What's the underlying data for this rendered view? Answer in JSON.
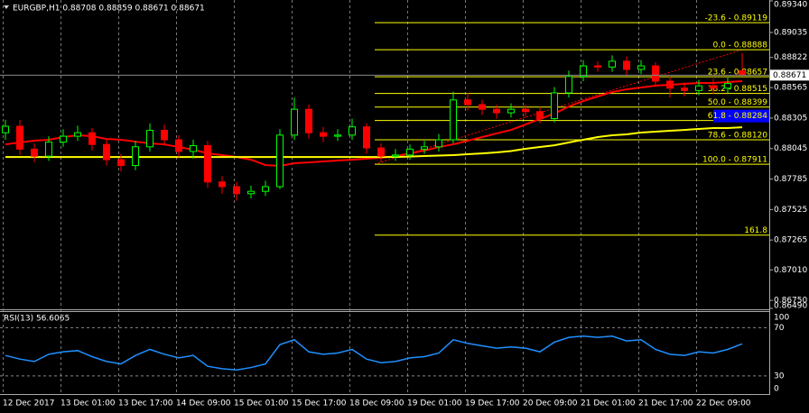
{
  "chart_data": {
    "type": "candlestick",
    "title": "EURGBP,H1  0.88708 0.88859 0.88671 0.88671",
    "categories": [
      "12 Dec 2017",
      null,
      null,
      null,
      "13 Dec 01:00",
      null,
      null,
      null,
      "13 Dec 17:00",
      null,
      null,
      null,
      "14 Dec 09:00",
      null,
      null,
      null,
      "15 Dec 01:00",
      null,
      null,
      null,
      "15 Dec 17:00",
      null,
      null,
      null,
      "18 Dec 09:00",
      null,
      null,
      null,
      "19 Dec 01:00",
      null,
      null,
      null,
      "19 Dec 17:00",
      null,
      null,
      null,
      "20 Dec 09:00",
      null,
      null,
      null,
      "21 Dec 01:00",
      null,
      null,
      null,
      "21 Dec 17:00",
      null,
      null,
      null,
      "22 Dec 09:00",
      null,
      null,
      null
    ],
    "ohlc": {
      "up_color": "#00ff00",
      "down_color": "#ff0000",
      "open": [
        0.8818,
        0.88235,
        0.8804,
        0.8798,
        0.881,
        0.8815,
        0.8818,
        0.8808,
        0.8795,
        0.879,
        0.8806,
        0.882,
        0.8812,
        0.8802,
        0.8807,
        0.8776,
        0.8772,
        0.8766,
        0.8768,
        0.8772,
        0.8816,
        0.8838,
        0.8818,
        0.8815,
        0.8816,
        0.8823,
        0.8805,
        0.8798,
        0.8799,
        0.8804,
        0.8806,
        0.8812,
        0.8846,
        0.8842,
        0.8838,
        0.8835,
        0.8838,
        0.8836,
        0.883,
        0.8852,
        0.8866,
        0.8875,
        0.8874,
        0.8879,
        0.8872,
        0.8875,
        0.8862,
        0.8856,
        0.8854,
        0.8858,
        0.8856,
        0.88708
      ],
      "high": [
        0.8829,
        0.8829,
        0.8809,
        0.8815,
        0.8821,
        0.8824,
        0.8822,
        0.8812,
        0.88,
        0.8811,
        0.8826,
        0.8825,
        0.8816,
        0.8812,
        0.8811,
        0.8781,
        0.8776,
        0.8773,
        0.8777,
        0.8821,
        0.8848,
        0.8842,
        0.8823,
        0.8821,
        0.883,
        0.8826,
        0.8809,
        0.8804,
        0.8808,
        0.8811,
        0.8817,
        0.8853,
        0.8852,
        0.8846,
        0.8842,
        0.8843,
        0.8842,
        0.884,
        0.8857,
        0.8871,
        0.888,
        0.8879,
        0.8884,
        0.8883,
        0.888,
        0.8878,
        0.8866,
        0.8861,
        0.8863,
        0.8864,
        0.8865,
        0.88859
      ],
      "low": [
        0.8812,
        0.8799,
        0.8793,
        0.8794,
        0.8806,
        0.8811,
        0.8803,
        0.879,
        0.8785,
        0.8786,
        0.8802,
        0.8807,
        0.8797,
        0.8796,
        0.8771,
        0.8766,
        0.876,
        0.8762,
        0.8764,
        0.877,
        0.8812,
        0.8813,
        0.881,
        0.8811,
        0.8812,
        0.88,
        0.8793,
        0.8794,
        0.8795,
        0.88,
        0.8802,
        0.8809,
        0.8837,
        0.8833,
        0.883,
        0.8831,
        0.8831,
        0.8826,
        0.8827,
        0.8848,
        0.8862,
        0.887,
        0.887,
        0.8867,
        0.8868,
        0.8857,
        0.8848,
        0.8849,
        0.885,
        0.8851,
        0.8852,
        0.88671
      ],
      "close": [
        0.88235,
        0.8804,
        0.8798,
        0.881,
        0.8815,
        0.8818,
        0.8808,
        0.8795,
        0.879,
        0.8806,
        0.882,
        0.8812,
        0.8802,
        0.8807,
        0.8776,
        0.8772,
        0.8766,
        0.8768,
        0.8772,
        0.8816,
        0.8838,
        0.8818,
        0.8815,
        0.8816,
        0.8823,
        0.8805,
        0.8798,
        0.8799,
        0.8804,
        0.8806,
        0.8812,
        0.8846,
        0.8842,
        0.8838,
        0.8835,
        0.8838,
        0.8836,
        0.883,
        0.8852,
        0.8866,
        0.8875,
        0.8874,
        0.8879,
        0.8872,
        0.8875,
        0.8862,
        0.8856,
        0.8854,
        0.8858,
        0.8856,
        0.886,
        0.88671
      ]
    },
    "moving_averages": [
      {
        "color": "#ff0000",
        "values": [
          0.88081,
          0.88097,
          0.88112,
          0.8812,
          0.88143,
          0.88158,
          0.88151,
          0.88127,
          0.8812,
          0.88104,
          0.88089,
          0.88081,
          0.88058,
          0.88035,
          0.88004,
          0.87989,
          0.87973,
          0.8795,
          0.87904,
          0.87897,
          0.8792,
          0.87927,
          0.87935,
          0.87943,
          0.8795,
          0.87958,
          0.87966,
          0.87981,
          0.88004,
          0.88027,
          0.88058,
          0.88081,
          0.88112,
          0.88143,
          0.88174,
          0.88204,
          0.8825,
          0.88297,
          0.88343,
          0.88404,
          0.8845,
          0.88489,
          0.88527,
          0.8855,
          0.88566,
          0.88581,
          0.88589,
          0.88597,
          0.88604,
          0.88604,
          0.88612,
          0.8862
        ]
      },
      {
        "color": "#ffff00",
        "values": [
          0.87973,
          0.87973,
          0.87973,
          0.87973,
          0.87973,
          0.87973,
          0.87973,
          0.87973,
          0.87973,
          0.87973,
          0.87973,
          0.87973,
          0.87973,
          0.87973,
          0.87973,
          0.87973,
          0.87973,
          0.87973,
          0.87973,
          0.87973,
          0.87973,
          0.87973,
          0.87973,
          0.87973,
          0.87973,
          0.87973,
          0.87973,
          0.87973,
          0.87977,
          0.87981,
          0.87985,
          0.87989,
          0.87997,
          0.88004,
          0.88012,
          0.88024,
          0.88043,
          0.88058,
          0.88073,
          0.88097,
          0.8812,
          0.88143,
          0.88158,
          0.88166,
          0.88181,
          0.88189,
          0.88197,
          0.88204,
          0.88212,
          0.8822,
          0.8822,
          0.88227
        ]
      }
    ],
    "fibonacci": {
      "color": "#ffff00",
      "highlight_color": "#0000ff",
      "levels": [
        {
          "value": 0.89119,
          "label": "-23.6 - 0.89119"
        },
        {
          "value": 0.88888,
          "label": "0.0 - 0.88888"
        },
        {
          "value": 0.88657,
          "label": "23.6 - 0.88657"
        },
        {
          "value": 0.88515,
          "label": "38.2 - 0.88515"
        },
        {
          "value": 0.88399,
          "label": "50.0 - 0.88399"
        },
        {
          "value": 0.88284,
          "label": "61.8 - 0.88284"
        },
        {
          "value": 0.8812,
          "label": "78.6 - 0.88120"
        },
        {
          "value": 0.87911,
          "label": "100.0 - 0.87911"
        },
        {
          "value": 0.87307,
          "label": "161.8"
        }
      ]
    },
    "last_price": {
      "value": 0.88671,
      "label": "0.88671"
    },
    "ylim": [
      0.86674,
      0.89312
    ],
    "yticks": [
      {
        "value": 0.8934,
        "label": "0.89340"
      },
      {
        "value": 0.89035,
        "label": "0.89035"
      },
      {
        "value": 0.88822,
        "label": "0.88822"
      },
      {
        "value": 0.88565,
        "label": "0.88565"
      },
      {
        "value": 0.88305,
        "label": "0.88305"
      },
      {
        "value": 0.88045,
        "label": "0.88045"
      },
      {
        "value": 0.87785,
        "label": "0.87785"
      },
      {
        "value": 0.87525,
        "label": "0.87525"
      },
      {
        "value": 0.87265,
        "label": "0.87265"
      },
      {
        "value": 0.8701,
        "label": "0.87010"
      },
      {
        "value": 0.8675,
        "label": "0.86750"
      },
      {
        "value": 0.8649,
        "label": "0.86490"
      }
    ],
    "rsi": {
      "title": "RSI(13) 56.6065",
      "color": "#1e90ff",
      "values": [
        47,
        44,
        42,
        48,
        50,
        51,
        46,
        42,
        40,
        47,
        52,
        48,
        45,
        47,
        38,
        36,
        35,
        37,
        40,
        56,
        60,
        50,
        48,
        49,
        52,
        44,
        41,
        42,
        45,
        46,
        49,
        60,
        57,
        55,
        53,
        54,
        53,
        50,
        58,
        62,
        63,
        62,
        63,
        59,
        60,
        52,
        48,
        47,
        50,
        49,
        52,
        56.6065
      ],
      "ylim": [
        15,
        83
      ],
      "yticks": [
        100,
        70,
        30,
        0
      ]
    }
  }
}
